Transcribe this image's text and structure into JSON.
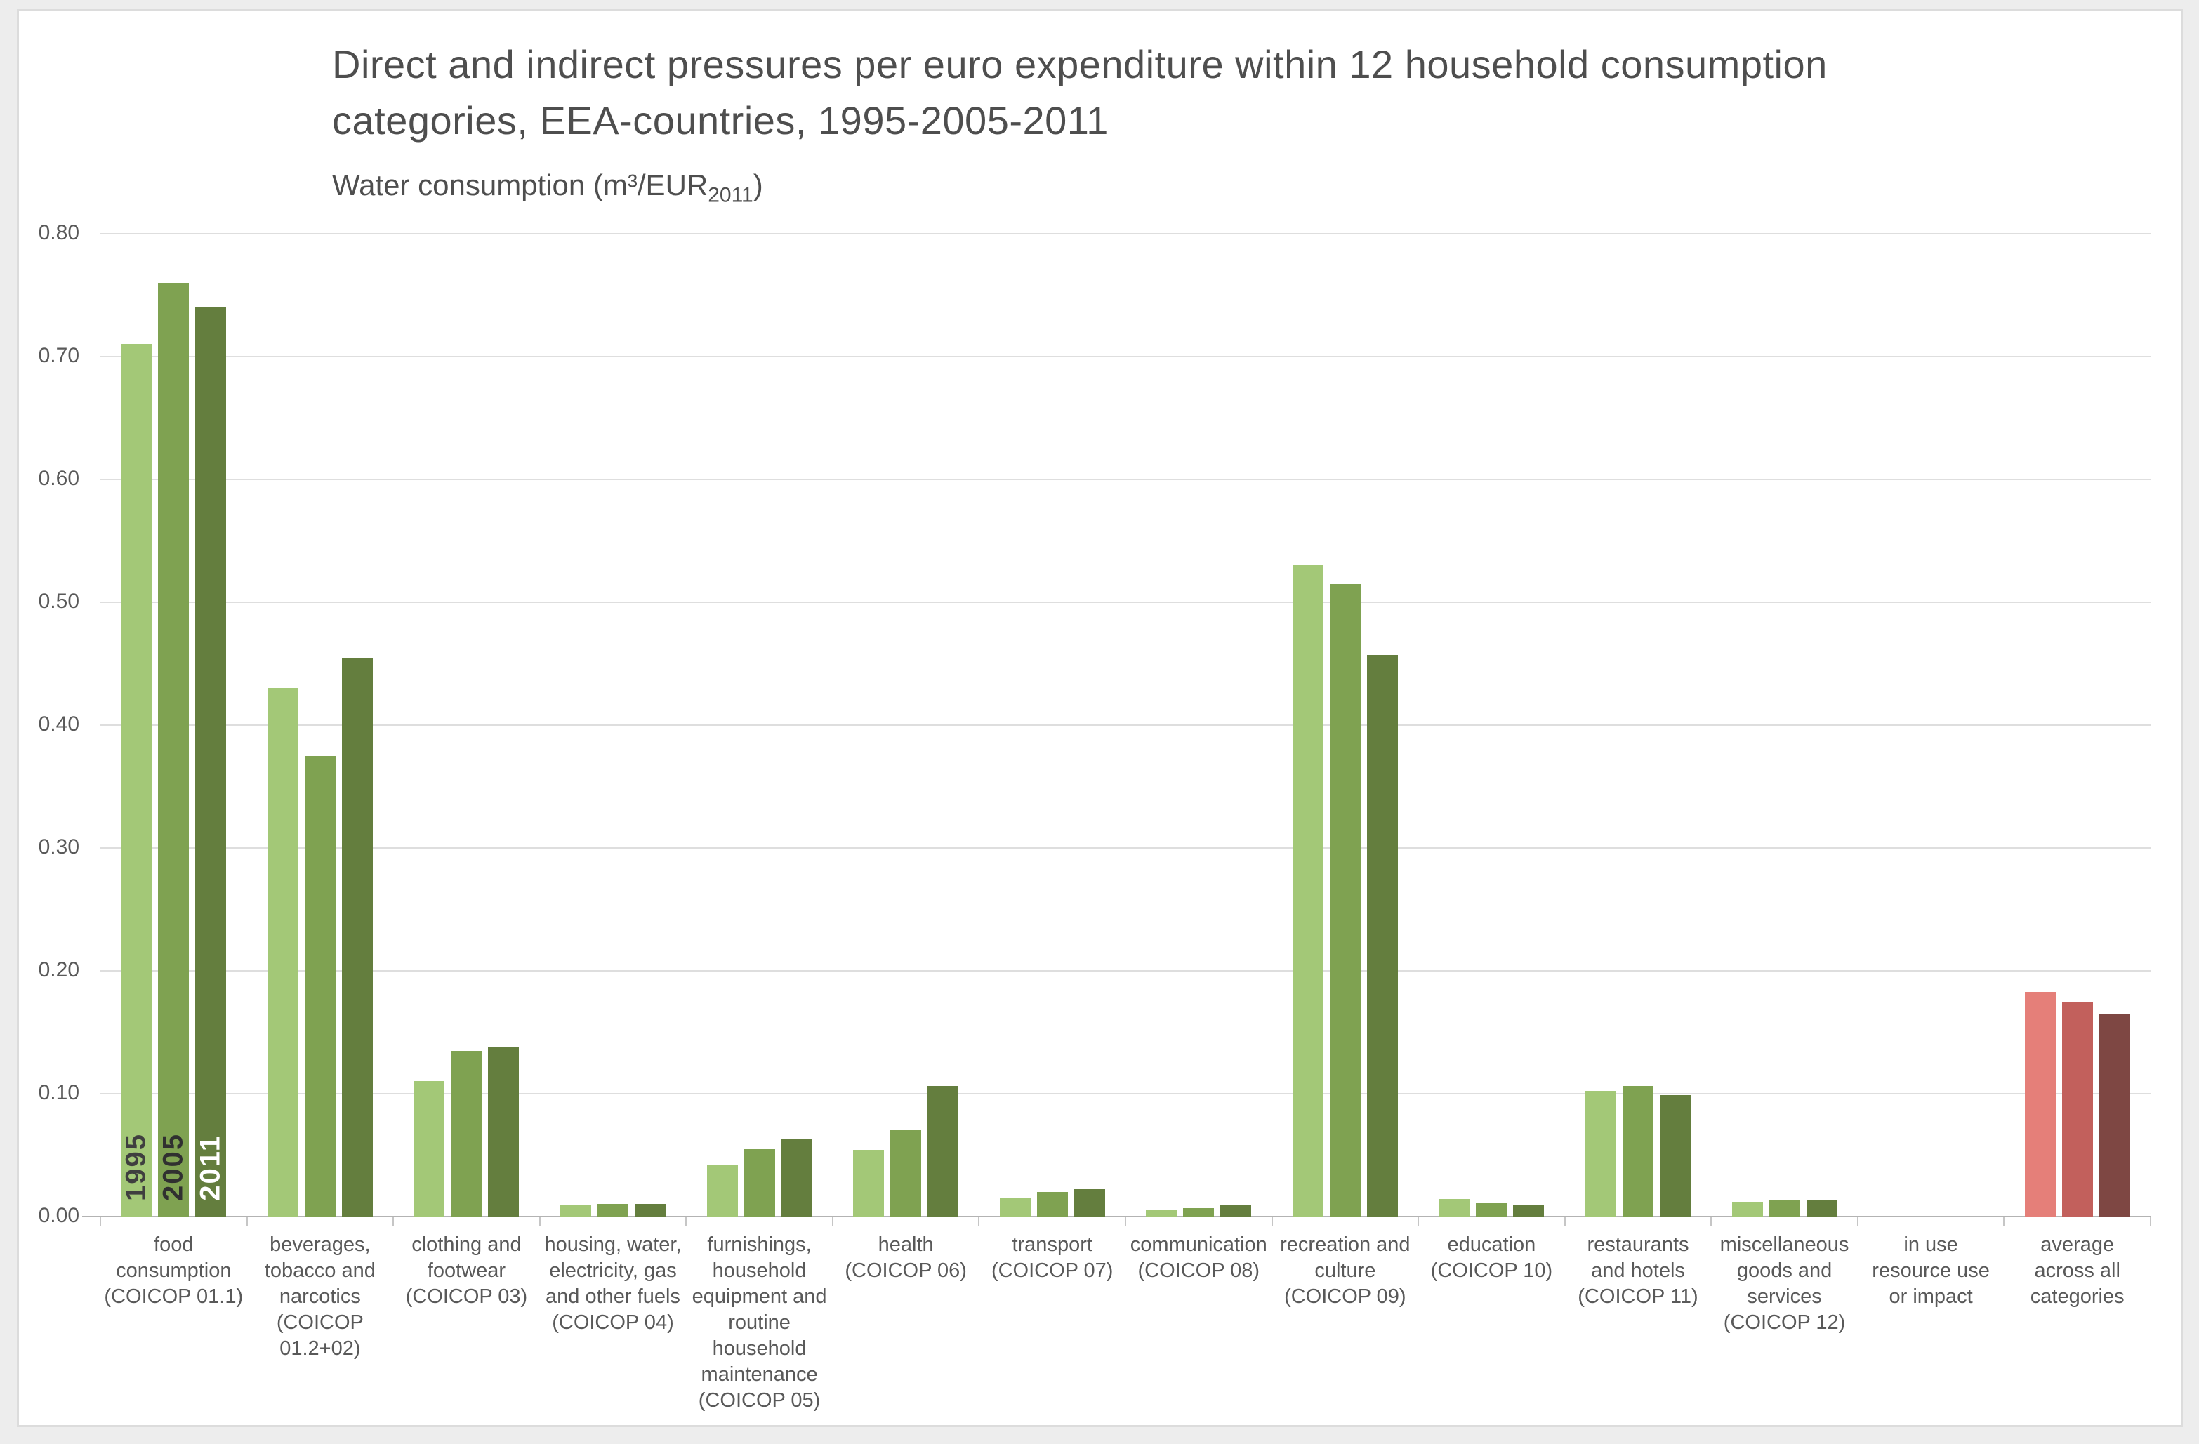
{
  "header": {
    "title_lines": [
      "Direct and indirect pressures per euro expenditure within 12 household consumption",
      "categories, EEA-countries, 1995-2005-2011"
    ],
    "subtitle": {
      "prefix": "Water consumption (m³/EUR",
      "sub": "2011",
      "suffix": ")"
    }
  },
  "chart_data": {
    "type": "bar",
    "title": "Direct and indirect pressures per euro expenditure within 12 household consumption categories, EEA-countries, 1995-2005-2011",
    "subtitle": "Water consumption (m3/EUR2011)",
    "ylabel": "Water consumption (m3/EUR2011)",
    "ylim": [
      0,
      0.8
    ],
    "ytick_step": 0.1,
    "ytick_labels": [
      "0.00",
      "0.10",
      "0.20",
      "0.30",
      "0.40",
      "0.50",
      "0.60",
      "0.70",
      "0.80"
    ],
    "grid": true,
    "legend_position": "in-bar-labels-first-group",
    "categories": [
      "food consumption (COICOP 01.1)",
      "beverages, tobacco and narcotics (COICOP 01.2+02)",
      "clothing and footwear (COICOP 03)",
      "housing, water, electricity, gas and other fuels (COICOP 04)",
      "furnishings, household equipment and routine household maintenance (COICOP 05)",
      "health (COICOP 06)",
      "transport (COICOP 07)",
      "communication (COICOP 08)",
      "recreation and culture (COICOP 09)",
      "education (COICOP 10)",
      "restaurants and hotels (COICOP 11)",
      "miscellaneous goods and services (COICOP 12)",
      "in use resource use or impact",
      "average across all categories"
    ],
    "series": [
      {
        "name": "1995",
        "values": [
          0.71,
          0.43,
          0.11,
          0.009,
          0.042,
          0.054,
          0.015,
          0.005,
          0.53,
          0.014,
          0.102,
          0.012,
          0,
          0.183
        ]
      },
      {
        "name": "2005",
        "values": [
          0.76,
          0.375,
          0.135,
          0.01,
          0.055,
          0.071,
          0.02,
          0.007,
          0.515,
          0.011,
          0.106,
          0.013,
          0,
          0.174
        ]
      },
      {
        "name": "2011",
        "values": [
          0.74,
          0.455,
          0.138,
          0.01,
          0.063,
          0.106,
          0.022,
          0.009,
          0.457,
          0.009,
          0.099,
          0.013,
          0,
          0.165
        ]
      }
    ],
    "highlight_category_index": 13,
    "colors": {
      "normal": [
        "#A3C877",
        "#7FA251",
        "#647E3E"
      ],
      "highlight": [
        "#E57F79",
        "#C2605C",
        "#7E4743"
      ],
      "bar_year_labels": [
        "#3F3F3F",
        "#303030",
        "#FFFFFF"
      ],
      "gridline": "#DEDEDE",
      "axis_line": "#B3B3B3",
      "text": "#595959"
    }
  }
}
